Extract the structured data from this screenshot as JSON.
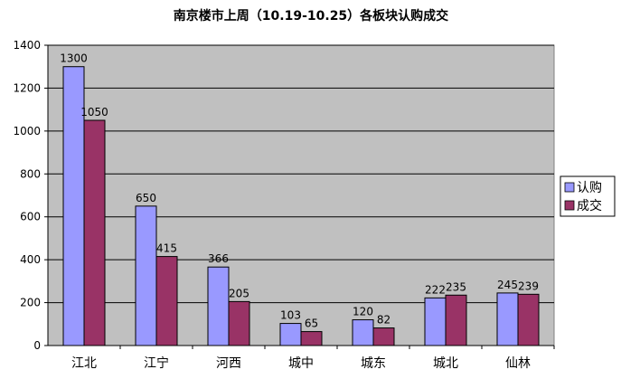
{
  "chart_data": {
    "type": "bar",
    "title": "南京楼市上周（10.19-10.25）各板块认购成交",
    "categories": [
      "江北",
      "江宁",
      "河西",
      "城中",
      "城东",
      "城北",
      "仙林"
    ],
    "series": [
      {
        "name": "认购",
        "values": [
          1300,
          650,
          366,
          103,
          120,
          222,
          245
        ],
        "color": "#9999ff"
      },
      {
        "name": "成交",
        "values": [
          1050,
          415,
          205,
          65,
          82,
          235,
          239
        ],
        "color": "#993366"
      }
    ],
    "ylim": [
      0,
      1400
    ],
    "yticks": [
      0,
      200,
      400,
      600,
      800,
      1000,
      1200,
      1400
    ],
    "grid": true,
    "legend": "right",
    "plot_background": "#c0c0c0"
  }
}
